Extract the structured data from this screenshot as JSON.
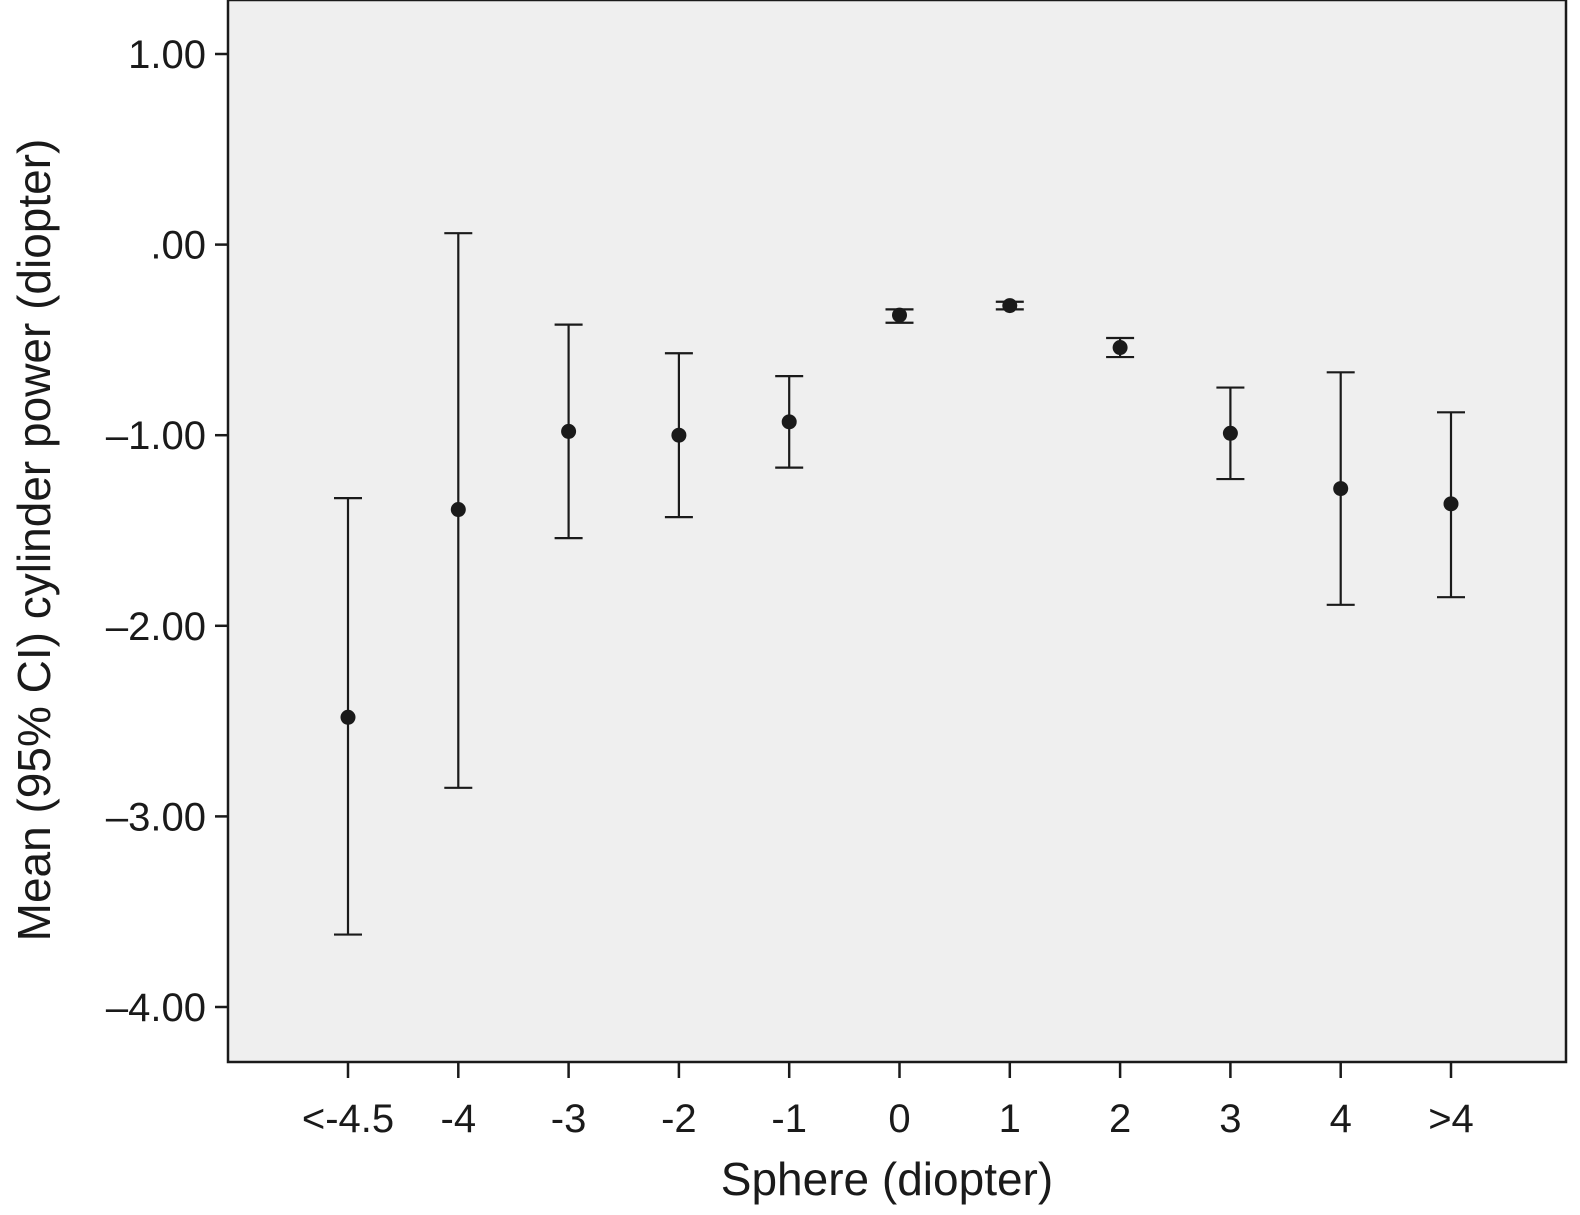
{
  "chart_data": {
    "type": "scatter",
    "subtype": "error-bar",
    "title": "",
    "xlabel": "Sphere (diopter)",
    "ylabel": "Mean (95% CI) cylinder power (diopter)",
    "ylim": [
      -4.25,
      1.25
    ],
    "grid": false,
    "categories": [
      "<-4.5",
      "-4",
      "-3",
      "-2",
      "-1",
      "0",
      "1",
      "2",
      "3",
      "4",
      ">4"
    ],
    "y_ticks": [
      1.0,
      0.0,
      -1.0,
      -2.0,
      -3.0,
      -4.0
    ],
    "y_tick_labels": [
      "1.00",
      ".00",
      "–1.00",
      "–2.00",
      "–3.00",
      "–4.00"
    ],
    "series": [
      {
        "mean": [
          -2.48,
          -1.39,
          -0.98,
          -1.0,
          -0.93,
          -0.37,
          -0.32,
          -0.54,
          -0.99,
          -1.28,
          -1.36
        ],
        "lower": [
          -3.62,
          -2.85,
          -1.54,
          -1.43,
          -1.17,
          -0.41,
          -0.34,
          -0.59,
          -1.23,
          -1.89,
          -1.85
        ],
        "upper": [
          -1.33,
          0.06,
          -0.42,
          -0.57,
          -0.69,
          -0.34,
          -0.3,
          -0.49,
          -0.75,
          -0.67,
          -0.88
        ]
      }
    ],
    "colors": {
      "plot_background": "#efefef",
      "marks": "#1a1a1a"
    }
  }
}
